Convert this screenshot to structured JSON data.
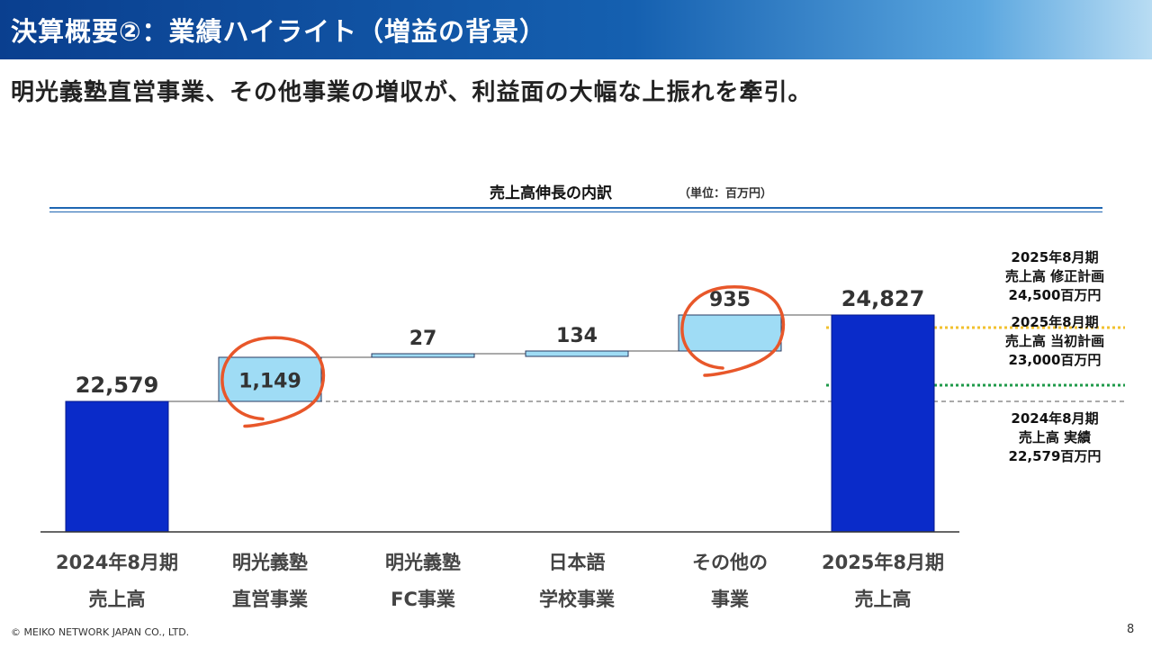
{
  "header": {
    "title": "決算概要②：業績ハイライト（増益の背景）"
  },
  "subtitle": "明光義塾直営事業、その他事業の増収が、利益面の大幅な上振れを牽引。",
  "chart": {
    "title": "売上高伸長の内訳",
    "unit": "（単位：百万円）"
  },
  "chart_data": {
    "type": "waterfall",
    "title": "売上高伸長の内訳",
    "unit": "（単位：百万円）",
    "categories": [
      [
        "2024年8月期",
        "売上高"
      ],
      [
        "明光義塾",
        "直営事業"
      ],
      [
        "明光義塾",
        "FC事業"
      ],
      [
        "日本語",
        "学校事業"
      ],
      [
        "その他の",
        "事業"
      ],
      [
        "2025年8月期",
        "売上高"
      ]
    ],
    "values": [
      22579,
      1149,
      27,
      134,
      935,
      24827
    ],
    "labels": [
      "22,579",
      "1,149",
      "27",
      "134",
      "935",
      "24,827"
    ],
    "kinds": [
      "total",
      "increase",
      "increase",
      "increase",
      "increase",
      "total"
    ],
    "highlighted": [
      false,
      true,
      false,
      false,
      true,
      false
    ],
    "reference_lines": [
      {
        "value": 24500,
        "style": "dotted",
        "color": "#f2c12e"
      },
      {
        "value": 23000,
        "style": "dotted",
        "color": "#1f9a4a"
      },
      {
        "value": 22579,
        "style": "dashed",
        "color": "#555555"
      }
    ],
    "colors": {
      "total": "#0a2bc9",
      "increase": "#9fdcf5",
      "highlight": "#e8572a"
    }
  },
  "notes": [
    {
      "lines": [
        "2025年8月期",
        "売上高  修正計画",
        "24,500百万円"
      ]
    },
    {
      "lines": [
        "2025年8月期",
        "売上高  当初計画",
        "23,000百万円"
      ]
    },
    {
      "lines": [
        "2024年8月期",
        "売上高 実績",
        "22,579百万円"
      ]
    }
  ],
  "footer": {
    "copyright": "© MEIKO NETWORK JAPAN CO., LTD.",
    "page": "8"
  }
}
